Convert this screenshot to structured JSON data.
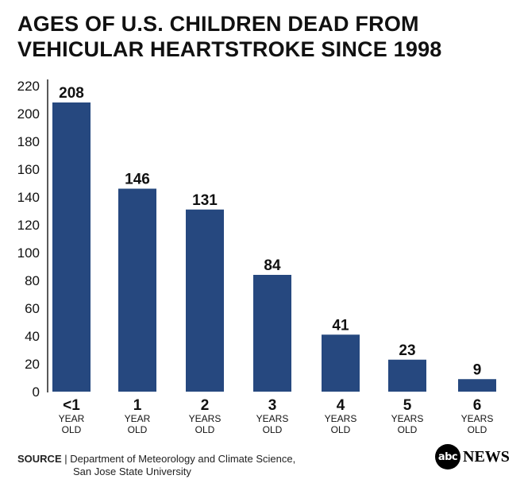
{
  "chart_data": {
    "type": "bar",
    "title_lines": [
      "AGES OF U.S. CHILDREN DEAD FROM",
      "VEHICULAR HEARTSTROKE SINCE 1998"
    ],
    "categories": [
      {
        "main": "<1",
        "sub1": "YEAR",
        "sub2": "OLD"
      },
      {
        "main": "1",
        "sub1": "YEAR",
        "sub2": "OLD"
      },
      {
        "main": "2",
        "sub1": "YEARS",
        "sub2": "OLD"
      },
      {
        "main": "3",
        "sub1": "YEARS",
        "sub2": "OLD"
      },
      {
        "main": "4",
        "sub1": "YEARS",
        "sub2": "OLD"
      },
      {
        "main": "5",
        "sub1": "YEARS",
        "sub2": "OLD"
      },
      {
        "main": "6",
        "sub1": "YEARS",
        "sub2": "OLD"
      }
    ],
    "values": [
      208,
      146,
      131,
      84,
      41,
      23,
      9
    ],
    "data_labels": [
      "208",
      "146",
      "131",
      "84",
      "41",
      "23",
      "9"
    ],
    "yticks": [
      0,
      20,
      40,
      60,
      80,
      100,
      120,
      140,
      160,
      180,
      200,
      220
    ],
    "ylim": [
      0,
      220
    ],
    "grid": false,
    "bar_color": "#26487f"
  },
  "footer": {
    "source_label": "SOURCE",
    "source_text_line1": " | Department of Meteorology and Climate Science,",
    "source_text_line2": "San Jose State University"
  },
  "logo": {
    "mark": "abc",
    "word": "NEWS"
  }
}
